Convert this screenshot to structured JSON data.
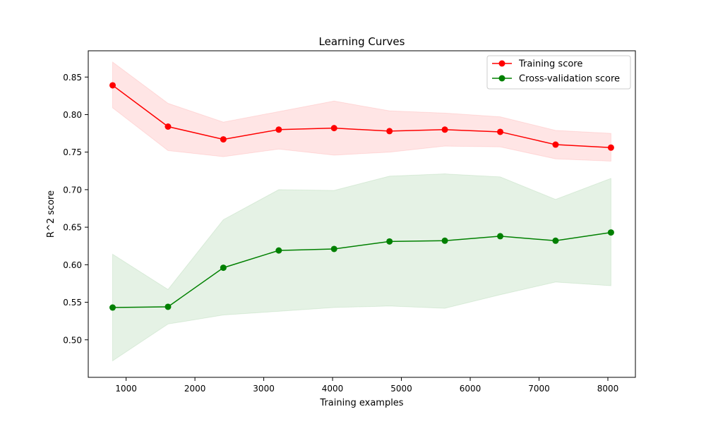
{
  "chart_data": {
    "type": "line",
    "title": "Learning Curves",
    "xlabel": "Training examples",
    "ylabel": "R^2 score",
    "xlim": [
      450,
      8400
    ],
    "ylim": [
      0.45,
      0.885
    ],
    "x_ticks": [
      1000,
      2000,
      3000,
      4000,
      5000,
      6000,
      7000,
      8000
    ],
    "y_ticks": [
      0.5,
      0.55,
      0.6,
      0.65,
      0.7,
      0.75,
      0.8,
      0.85
    ],
    "x_tick_labels": [
      "1000",
      "2000",
      "3000",
      "4000",
      "5000",
      "6000",
      "7000",
      "8000"
    ],
    "y_tick_labels": [
      "0.50",
      "0.55",
      "0.60",
      "0.65",
      "0.70",
      "0.75",
      "0.80",
      "0.85"
    ],
    "grid": false,
    "legend_position": "top-right",
    "x": [
      804,
      1609,
      2413,
      3218,
      4022,
      4827,
      5631,
      6436,
      7240,
      8045
    ],
    "series": [
      {
        "name": "Training score",
        "color": "#ff0000",
        "band_color": "#ff0000",
        "values": [
          0.839,
          0.784,
          0.767,
          0.78,
          0.782,
          0.778,
          0.78,
          0.777,
          0.76,
          0.756
        ],
        "upper": [
          0.87,
          0.815,
          0.79,
          0.804,
          0.818,
          0.805,
          0.802,
          0.797,
          0.779,
          0.775
        ],
        "lower": [
          0.809,
          0.752,
          0.744,
          0.754,
          0.746,
          0.75,
          0.758,
          0.757,
          0.741,
          0.738
        ]
      },
      {
        "name": "Cross-validation score",
        "color": "#008000",
        "band_color": "#008000",
        "values": [
          0.543,
          0.544,
          0.596,
          0.619,
          0.621,
          0.631,
          0.632,
          0.638,
          0.632,
          0.643
        ],
        "upper": [
          0.614,
          0.567,
          0.66,
          0.7,
          0.699,
          0.718,
          0.721,
          0.717,
          0.687,
          0.715
        ],
        "lower": [
          0.472,
          0.521,
          0.533,
          0.538,
          0.543,
          0.545,
          0.542,
          0.56,
          0.577,
          0.572
        ]
      }
    ]
  }
}
